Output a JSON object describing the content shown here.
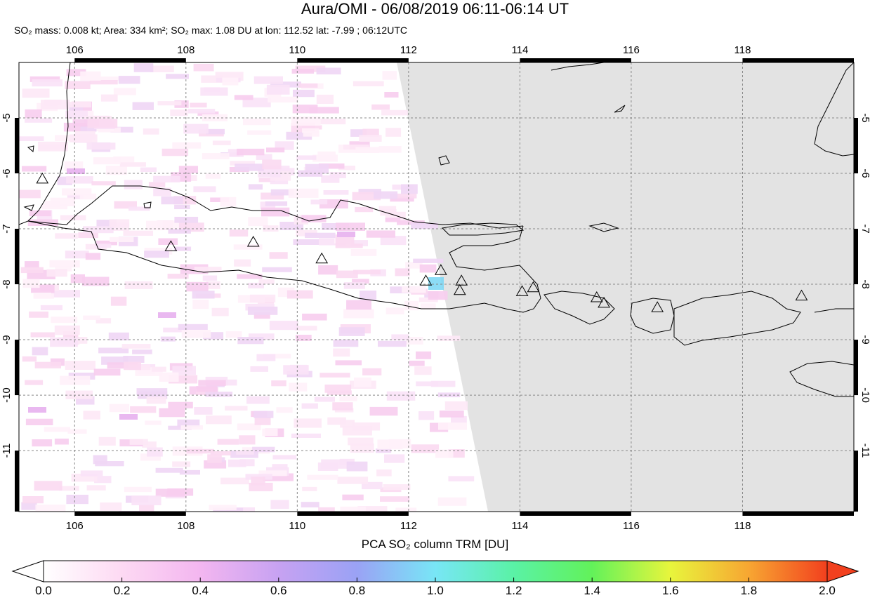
{
  "title": "Aura/OMI - 06/08/2019 06:11-06:14 UT",
  "subtitle": {
    "mass": "SO₂ mass: 0.008 kt; Area: 334 km²; SO₂ max: 1.08 DU at lon: 112.52 lat: -7.99 ; 06:12UTC"
  },
  "map": {
    "lon_range": [
      105,
      120
    ],
    "lat_range": [
      -12.1,
      -4.0
    ],
    "lon_ticks": [
      "106",
      "108",
      "110",
      "112",
      "114",
      "116",
      "118"
    ],
    "lat_ticks": [
      "-5",
      "-6",
      "-7",
      "-8",
      "-9",
      "-10",
      "-11"
    ],
    "no_data_region": "grey area east of the orbit swath",
    "so2_max_location": {
      "lon": 112.52,
      "lat": -7.99,
      "value_du": 1.08
    }
  },
  "colorbar": {
    "title": "PCA SO₂ column TRM [DU]",
    "labels": [
      "0.0",
      "0.2",
      "0.4",
      "0.6",
      "0.8",
      "1.0",
      "1.2",
      "1.4",
      "1.6",
      "1.8",
      "2.0"
    ],
    "range": [
      0.0,
      2.0
    ],
    "colors": [
      "#ffffff",
      "#fdd9f3",
      "#f3b6f0",
      "#c7a2f2",
      "#9aa2f5",
      "#78e6f6",
      "#5af2a6",
      "#62f25a",
      "#e8f53c",
      "#f7a632",
      "#f2401e"
    ]
  },
  "volcano_markers": [
    {
      "lon": 105.42,
      "lat": -6.1
    },
    {
      "lon": 107.73,
      "lat": -7.32
    },
    {
      "lon": 109.21,
      "lat": -7.24
    },
    {
      "lon": 110.44,
      "lat": -7.54
    },
    {
      "lon": 112.31,
      "lat": -7.94
    },
    {
      "lon": 112.58,
      "lat": -7.75
    },
    {
      "lon": 112.95,
      "lat": -7.94
    },
    {
      "lon": 112.92,
      "lat": -8.11
    },
    {
      "lon": 114.04,
      "lat": -8.13
    },
    {
      "lon": 114.24,
      "lat": -8.06
    },
    {
      "lon": 115.38,
      "lat": -8.24
    },
    {
      "lon": 115.51,
      "lat": -8.34
    },
    {
      "lon": 116.47,
      "lat": -8.42
    },
    {
      "lon": 119.06,
      "lat": -8.21
    }
  ]
}
